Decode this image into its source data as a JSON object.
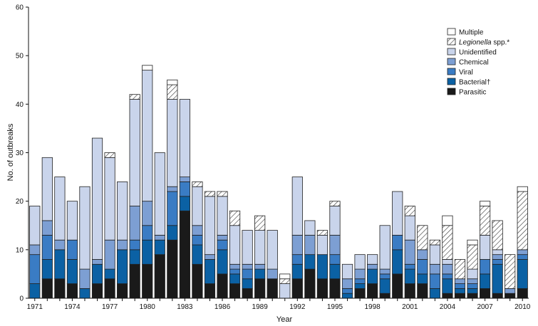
{
  "chart_data": {
    "type": "bar",
    "stacked": true,
    "title": "",
    "xlabel": "Year",
    "ylabel": "No. of outbreaks",
    "ylim": [
      0,
      60
    ],
    "yticks": [
      0,
      10,
      20,
      30,
      40,
      50,
      60
    ],
    "grid": false,
    "legend_position": "top-right",
    "categories": [
      "1971",
      "1972",
      "1973",
      "1974",
      "1975",
      "1976",
      "1977",
      "1978",
      "1979",
      "1980",
      "1981",
      "1982",
      "1983",
      "1984",
      "1985",
      "1986",
      "1987",
      "1988",
      "1989",
      "1990",
      "1991",
      "1992",
      "1993",
      "1994",
      "1995",
      "1996",
      "1997",
      "1998",
      "1999",
      "2000",
      "2001",
      "2002",
      "2003",
      "2004",
      "2005",
      "2006",
      "2007",
      "2008",
      "2009",
      "2010"
    ],
    "xtick_labels": [
      "1971",
      "1974",
      "1977",
      "1980",
      "1983",
      "1986",
      "1989",
      "1992",
      "1995",
      "1998",
      "2001",
      "2004",
      "2007",
      "2010"
    ],
    "series": [
      {
        "name": "Parasitic",
        "color": "#1a1a1a",
        "pattern": "solid",
        "values": [
          0,
          4,
          4,
          3,
          0,
          3,
          4,
          3,
          7,
          7,
          9,
          12,
          18,
          7,
          3,
          5,
          3,
          2,
          4,
          4,
          0,
          4,
          6,
          4,
          4,
          0,
          2,
          3,
          1,
          5,
          3,
          3,
          0,
          1,
          1,
          1,
          2,
          1,
          1,
          2
        ]
      },
      {
        "name": "Bacterial†",
        "color": "#0b61a4",
        "pattern": "solid",
        "values": [
          3,
          4,
          6,
          5,
          2,
          4,
          2,
          7,
          3,
          5,
          3,
          3,
          3,
          4,
          5,
          5,
          2,
          2,
          2,
          0,
          0,
          3,
          3,
          5,
          3,
          1,
          1,
          3,
          3,
          5,
          3,
          2,
          2,
          3,
          1,
          1,
          3,
          6,
          0,
          6
        ]
      },
      {
        "name": "Viral",
        "color": "#3a7cc4",
        "pattern": "solid",
        "values": [
          6,
          5,
          0,
          4,
          0,
          0,
          0,
          0,
          2,
          3,
          0,
          7,
          3,
          2,
          0,
          2,
          1,
          2,
          0,
          0,
          0,
          2,
          0,
          0,
          2,
          1,
          1,
          0,
          1,
          3,
          1,
          3,
          3,
          1,
          1,
          1,
          3,
          1,
          0,
          1
        ]
      },
      {
        "name": "Chemical",
        "color": "#7d9fd3",
        "pattern": "solid",
        "values": [
          2,
          3,
          2,
          0,
          4,
          1,
          6,
          2,
          7,
          5,
          1,
          1,
          1,
          2,
          1,
          1,
          1,
          1,
          1,
          2,
          0,
          4,
          4,
          0,
          4,
          2,
          2,
          1,
          1,
          0,
          5,
          2,
          2,
          2,
          1,
          1,
          0,
          1,
          1,
          1
        ]
      },
      {
        "name": "Unidentified",
        "color": "#c9d4eb",
        "pattern": "solid",
        "values": [
          8,
          13,
          13,
          8,
          17,
          25,
          17,
          12,
          22,
          27,
          17,
          18,
          16,
          8,
          12,
          8,
          8,
          7,
          7,
          8,
          3,
          12,
          3,
          4,
          6,
          3,
          3,
          2,
          9,
          9,
          5,
          0,
          4,
          1,
          0,
          2,
          5,
          1,
          0,
          0
        ]
      },
      {
        "name": "Legionella spp.*",
        "color": "#ffffff",
        "pattern": "hatch",
        "values": [
          0,
          0,
          0,
          0,
          0,
          0,
          1,
          0,
          1,
          0,
          0,
          3,
          0,
          1,
          1,
          1,
          3,
          0,
          3,
          0,
          1,
          0,
          0,
          1,
          1,
          0,
          0,
          0,
          0,
          0,
          2,
          5,
          1,
          7,
          4,
          5,
          6,
          6,
          7,
          12
        ]
      },
      {
        "name": "Multiple",
        "color": "#ffffff",
        "pattern": "solid",
        "values": [
          0,
          0,
          0,
          0,
          0,
          0,
          0,
          0,
          0,
          1,
          0,
          1,
          0,
          0,
          0,
          0,
          0,
          0,
          0,
          0,
          1,
          0,
          0,
          0,
          0,
          0,
          0,
          0,
          0,
          0,
          0,
          0,
          0,
          2,
          0,
          1,
          1,
          0,
          0,
          1
        ]
      }
    ],
    "legend_order": [
      "Multiple",
      "Legionella spp.*",
      "Unidentified",
      "Chemical",
      "Viral",
      "Bacterial†",
      "Parasitic"
    ]
  }
}
